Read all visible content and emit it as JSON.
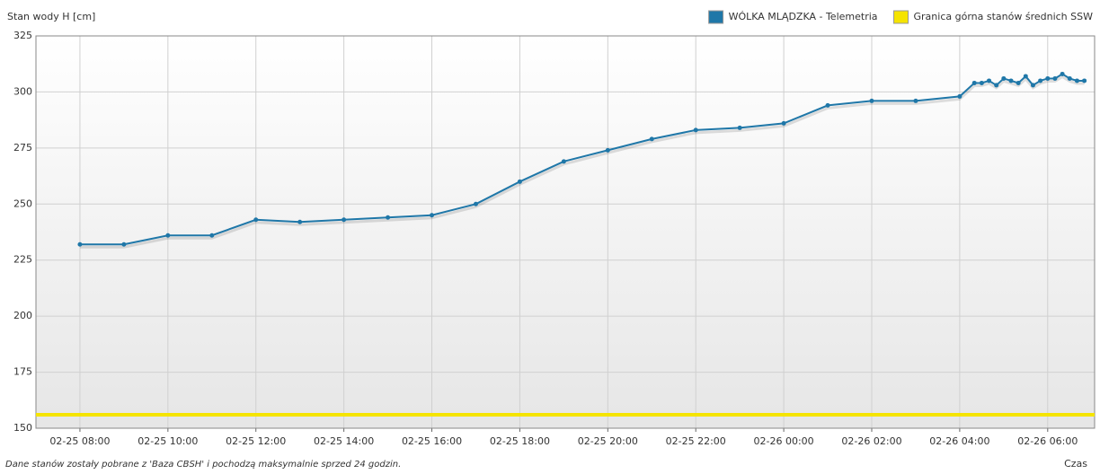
{
  "chart_data": {
    "type": "line",
    "y_label": "Stan wody H [cm]",
    "x_label": "Czas",
    "note": "Dane stanów zostały pobrane z 'Baza CBSH' i pochodzą maksymalnie sprzed 24 godzin.",
    "ylim": [
      150,
      325
    ],
    "yticks": [
      150,
      175,
      200,
      225,
      250,
      275,
      300,
      325
    ],
    "xlim": [
      "02-25 07:00",
      "02-26 07:04"
    ],
    "xticks": [
      "02-25 08:00",
      "02-25 10:00",
      "02-25 12:00",
      "02-25 14:00",
      "02-25 16:00",
      "02-25 18:00",
      "02-25 20:00",
      "02-25 22:00",
      "02-26 00:00",
      "02-26 02:00",
      "02-26 04:00",
      "02-26 06:00"
    ],
    "grid": true,
    "legend": "top-right",
    "series": [
      {
        "name": "WÓLKA MLĄDZKA - Telemetria",
        "color": "#1f77a8",
        "x": [
          "02-25 08:00",
          "02-25 09:00",
          "02-25 10:00",
          "02-25 11:00",
          "02-25 12:00",
          "02-25 13:00",
          "02-25 14:00",
          "02-25 15:00",
          "02-25 16:00",
          "02-25 17:00",
          "02-25 18:00",
          "02-25 19:00",
          "02-25 20:00",
          "02-25 21:00",
          "02-25 22:00",
          "02-25 23:00",
          "02-26 00:00",
          "02-26 01:00",
          "02-26 02:00",
          "02-26 03:00",
          "02-26 04:00",
          "02-26 04:20",
          "02-26 04:30",
          "02-26 04:40",
          "02-26 04:50",
          "02-26 05:00",
          "02-26 05:10",
          "02-26 05:20",
          "02-26 05:30",
          "02-26 05:40",
          "02-26 05:50",
          "02-26 06:00",
          "02-26 06:10",
          "02-26 06:20",
          "02-26 06:30",
          "02-26 06:40",
          "02-26 06:50"
        ],
        "values": [
          232,
          232,
          236,
          236,
          243,
          242,
          243,
          244,
          245,
          250,
          260,
          269,
          274,
          279,
          283,
          284,
          286,
          294,
          296,
          296,
          298,
          304,
          304,
          305,
          303,
          306,
          305,
          304,
          307,
          303,
          305,
          306,
          306,
          308,
          306,
          305,
          305
        ]
      },
      {
        "name": "Granica górna stanów średnich SSW",
        "color": "#f5e400",
        "x": [
          "02-25 07:00",
          "02-26 07:04"
        ],
        "values": [
          156,
          156
        ]
      }
    ]
  }
}
